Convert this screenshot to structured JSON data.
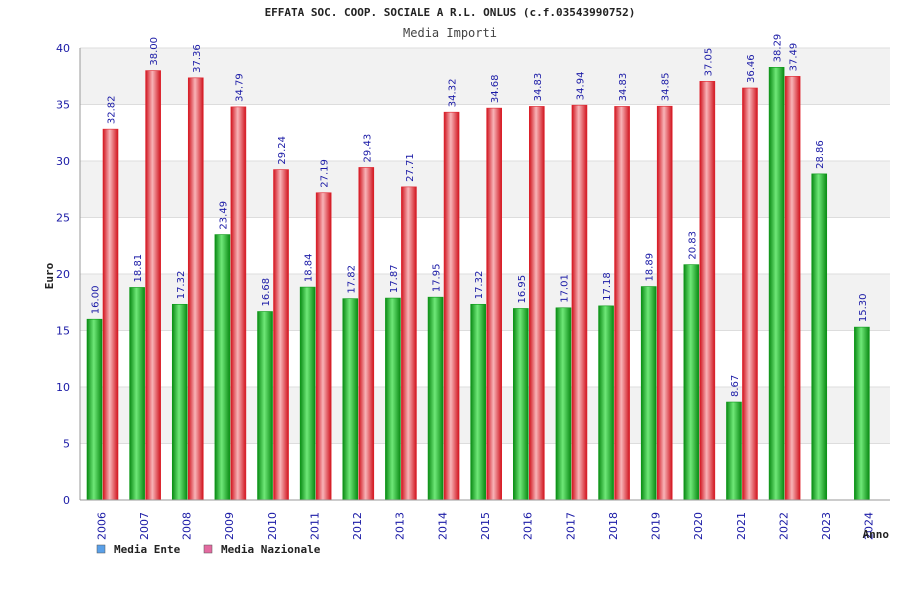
{
  "colors": {
    "ente": "#0a9a16",
    "ente_light": "#5fe06a",
    "nazionale": "#e0202a",
    "nazionale_light": "#f5a0a4",
    "band": "#f2f2f2",
    "grid": "#dddddd",
    "legend_ente": "#5aa0e8",
    "legend_nazionale": "#e36aa0"
  },
  "chart_data": {
    "type": "bar",
    "title": "EFFATA SOC. COOP. SOCIALE A R.L. ONLUS (c.f.03543990752)",
    "subtitle": "Media Importi",
    "xlabel": "Anno",
    "ylabel": "Euro",
    "ylim": [
      0,
      40
    ],
    "yticks": [
      0,
      5,
      10,
      15,
      20,
      25,
      30,
      35,
      40
    ],
    "categories": [
      "2006",
      "2007",
      "2008",
      "2009",
      "2010",
      "2011",
      "2012",
      "2013",
      "2014",
      "2015",
      "2016",
      "2017",
      "2018",
      "2019",
      "2020",
      "2021",
      "2022",
      "2023",
      "2024"
    ],
    "series": [
      {
        "name": "Media Ente",
        "values": [
          16.0,
          18.81,
          17.32,
          23.49,
          16.68,
          18.84,
          17.82,
          17.87,
          17.95,
          17.32,
          16.95,
          17.01,
          17.18,
          18.89,
          20.83,
          8.67,
          38.29,
          28.86,
          15.3
        ],
        "labels": [
          "16.00",
          "18.81",
          "17.32",
          "23.49",
          "16.68",
          "18.84",
          "17.82",
          "17.87",
          "17.95",
          "17.32",
          "16.95",
          "17.01",
          "17.18",
          "18.89",
          "20.83",
          "8.67",
          "38.29",
          "28.86",
          "15.30"
        ]
      },
      {
        "name": "Media Nazionale",
        "values": [
          32.82,
          38.0,
          37.36,
          34.79,
          29.24,
          27.19,
          29.43,
          27.71,
          34.32,
          34.68,
          34.83,
          34.94,
          34.83,
          34.85,
          37.05,
          36.46,
          37.49,
          null,
          null
        ],
        "labels": [
          "32.82",
          "38.00",
          "37.36",
          "34.79",
          "29.24",
          "27.19",
          "29.43",
          "27.71",
          "34.32",
          "34.68",
          "34.83",
          "34.94",
          "34.83",
          "34.85",
          "37.05",
          "36.46",
          "37.49",
          "",
          ""
        ]
      }
    ],
    "legend": [
      "Media Ente",
      "Media Nazionale"
    ],
    "legend_position": "bottom-left",
    "grid": true
  }
}
